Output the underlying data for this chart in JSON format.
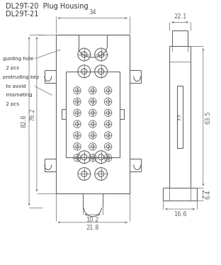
{
  "title_line1": "DL29T-20  Plug Housing",
  "title_line2": "DL29T-21",
  "bg_color": "#ffffff",
  "line_color": "#666666",
  "dim_color": "#666666",
  "text_color": "#333333",
  "dim_34": "34",
  "dim_22_1": "22.1",
  "dim_82_8": "82.8",
  "dim_76_2": "76.2",
  "dim_63_5": "63.5",
  "dim_10_2": "10.2",
  "dim_21_8": "21.8",
  "dim_6_4": "6.4",
  "dim_16_6": "16.6",
  "ann_line1": "guiding hole",
  "ann_line2": "  2 pcs",
  "ann_line3": "protruding key",
  "ann_line4": "  to avoid",
  "ann_line5": "  mismating",
  "ann_line6": "  2 pcs"
}
